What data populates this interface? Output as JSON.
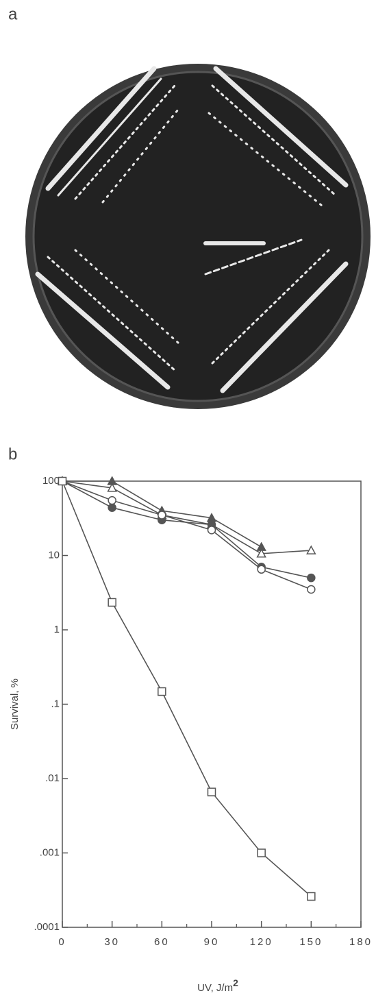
{
  "panels": {
    "a": "a",
    "b": "b"
  },
  "chart_data": {
    "type": "line",
    "ylabel": "Survival, %",
    "xlabel": "UV,  J/m",
    "xlabel_sup": "2",
    "x": [
      0,
      30,
      60,
      90,
      120,
      150
    ],
    "xlim": [
      0,
      180
    ],
    "xticks": [
      0,
      30,
      60,
      90,
      120,
      150,
      180
    ],
    "xminorticks": [
      15,
      45,
      75,
      105,
      135,
      165
    ],
    "ylim": [
      0.0001,
      100
    ],
    "yscale": "log",
    "yticks": [
      100,
      10,
      1,
      {
        "value": 0.1,
        "label": ".1"
      },
      {
        "value": 0.01,
        "label": ".01"
      },
      {
        "value": 0.001,
        "label": ".001"
      },
      {
        "value": 0.0001,
        "label": ".0001"
      }
    ],
    "series": [
      {
        "marker": "triangle-filled",
        "color": "#555555",
        "values": [
          100,
          100,
          40,
          32,
          13,
          null
        ]
      },
      {
        "marker": "triangle-open",
        "color": "#555555",
        "values": [
          100,
          81,
          35,
          26,
          10.6,
          11.7
        ]
      },
      {
        "marker": "circle-filled",
        "color": "#555555",
        "values": [
          100,
          44,
          30,
          26,
          7,
          5
        ]
      },
      {
        "marker": "circle-open",
        "color": "#555555",
        "values": [
          100,
          55,
          35,
          22,
          6.5,
          3.5
        ]
      },
      {
        "marker": "square-open",
        "color": "#555555",
        "values": [
          100,
          2.34,
          0.148,
          0.0066,
          0.001,
          0.00026
        ]
      }
    ]
  }
}
